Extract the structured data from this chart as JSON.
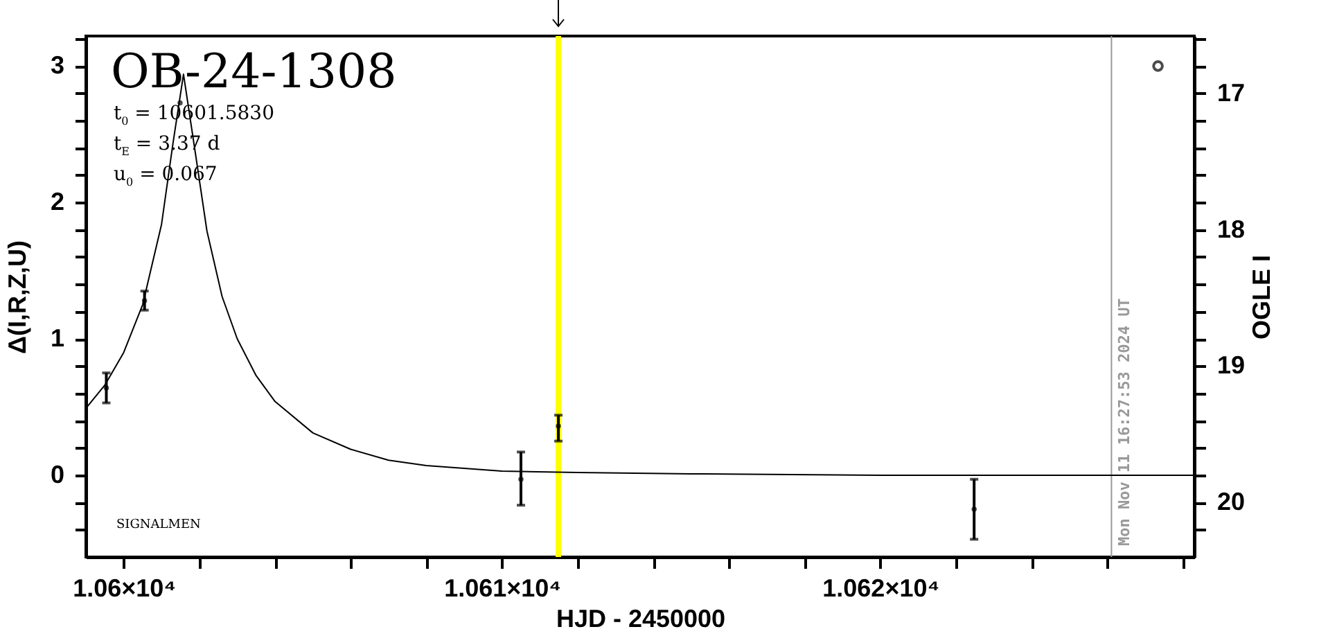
{
  "chart_data": {
    "type": "scatter",
    "title": "OB-24-1308",
    "xlabel": "HJD - 2450000",
    "ylabel": "Δ(I,R,Z,U)",
    "y2label": "OGLE I",
    "annotations": [
      "t$_{0}$ = 10601.5830",
      "t$_{E}$ = 3.37 d",
      "u$_{0}$ = 0.067",
      "SIGNALMEN",
      {
        "text": "Mon Nov 11 16:27:53 2024 UT",
        "x": 10626.11,
        "y": -0.6
      }
    ],
    "xlim": [
      10599,
      10628.3
    ],
    "ylim": [
      -0.6,
      3.22
    ],
    "y2lim": [
      20.4,
      16.58
    ],
    "xticks": [
      {
        "value": 10600,
        "label": "1.06×10⁴"
      },
      {
        "value": 10602,
        "label": null
      },
      {
        "value": 10604,
        "label": null
      },
      {
        "value": 10606,
        "label": null
      },
      {
        "value": 10608,
        "label": null
      },
      {
        "value": 10610,
        "label": "1.061×10⁴"
      },
      {
        "value": 10612,
        "label": null
      },
      {
        "value": 10614,
        "label": null
      },
      {
        "value": 10616,
        "label": null
      },
      {
        "value": 10618,
        "label": null
      },
      {
        "value": 10620,
        "label": "1.062×10⁴"
      },
      {
        "value": 10622,
        "label": null
      },
      {
        "value": 10624,
        "label": null
      },
      {
        "value": 10626,
        "label": null
      },
      {
        "value": 10628,
        "label": null
      }
    ],
    "yticks": [
      {
        "value": -0.4,
        "label": null
      },
      {
        "value": -0.2,
        "label": null
      },
      0,
      {
        "value": 0.2,
        "label": null
      },
      {
        "value": 0.4,
        "label": null
      },
      {
        "value": 0.6,
        "label": null
      },
      {
        "value": 0.8,
        "label": null
      },
      1,
      {
        "value": 1.2,
        "label": null
      },
      {
        "value": 1.4,
        "label": null
      },
      {
        "value": 1.6,
        "label": null
      },
      {
        "value": 1.8,
        "label": null
      },
      2,
      {
        "value": 2.2,
        "label": null
      },
      {
        "value": 2.4,
        "label": null
      },
      {
        "value": 2.6,
        "label": null
      },
      {
        "value": 2.8,
        "label": null
      },
      3,
      {
        "value": 3.2,
        "label": null
      }
    ],
    "y2ticks": [
      {
        "value": 16.6,
        "label": null
      },
      {
        "value": 16.8,
        "label": null
      },
      17,
      {
        "value": 17.2,
        "label": null
      },
      {
        "value": 17.4,
        "label": null
      },
      {
        "value": 17.6,
        "label": null
      },
      {
        "value": 17.8,
        "label": null
      },
      18,
      {
        "value": 18.2,
        "label": null
      },
      {
        "value": 18.4,
        "label": null
      },
      {
        "value": 18.6,
        "label": null
      },
      {
        "value": 18.8,
        "label": null
      },
      19,
      {
        "value": 19.2,
        "label": null
      },
      {
        "value": 19.4,
        "label": null
      },
      {
        "value": 19.6,
        "label": null
      },
      {
        "value": 19.8,
        "label": null
      },
      20,
      {
        "value": 20.2,
        "label": null
      }
    ],
    "grid": false,
    "ref_lines": [
      {
        "axis": "x",
        "value": 10611.49,
        "color": "#ffff00"
      },
      {
        "axis": "x",
        "value": 10626.11,
        "color": "#999999"
      }
    ],
    "series": [
      {
        "type": "line",
        "color": "#000000",
        "x": [
          10599,
          10599.5,
          10600,
          10600.5,
          10601,
          10601.3,
          10601.58,
          10601.9,
          10602.2,
          10602.6,
          10603,
          10603.5,
          10604,
          10605,
          10606,
          10607,
          10608,
          10610,
          10612,
          10615,
          10620,
          10628.3
        ],
        "values": [
          0.49,
          0.66,
          0.9,
          1.25,
          1.84,
          2.43,
          2.94,
          2.35,
          1.79,
          1.31,
          1.0,
          0.73,
          0.54,
          0.31,
          0.19,
          0.11,
          0.07,
          0.03,
          0.02,
          0.01,
          0.0,
          0.0
        ]
      },
      {
        "type": "scatter",
        "marker": "circle",
        "color": "#000000",
        "x": [
          10599.54,
          10600.55,
          10601.49,
          10610.5,
          10611.49,
          10622.48
        ],
        "values": [
          0.64,
          1.28,
          2.73,
          -0.03,
          0.36,
          -0.25
        ],
        "errors": [
          0.11,
          0.07,
          null,
          [
            -0.22,
            0.17
          ],
          [
            0.25,
            0.44
          ],
          [
            -0.47,
            -0.03
          ]
        ]
      },
      {
        "type": "scatter",
        "marker": "circle",
        "color": "#000000",
        "axis": "y2",
        "x": [
          10627.34
        ],
        "values": [
          16.8
        ]
      }
    ]
  }
}
